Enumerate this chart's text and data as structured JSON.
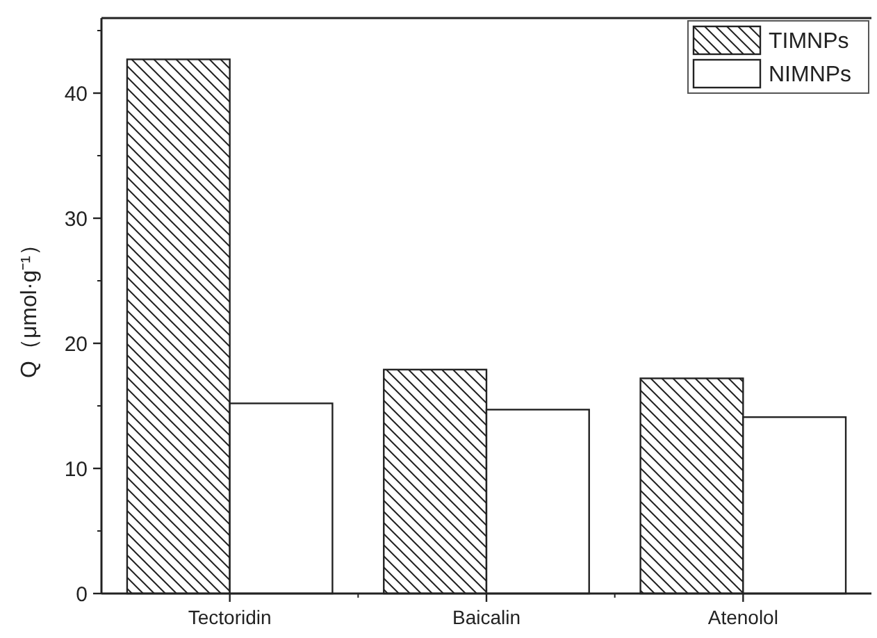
{
  "chart_data": {
    "type": "bar",
    "ylabel": "Q（μmol·g⁻¹）",
    "categories": [
      "Tectoridin",
      "Baicalin",
      "Atenolol"
    ],
    "series": [
      {
        "name": "TIMNPs",
        "color": "#222222",
        "values": [
          42.7,
          17.9,
          17.2
        ]
      },
      {
        "name": "NIMNPs",
        "color": "#ffffff",
        "values": [
          15.2,
          14.7,
          14.1
        ]
      }
    ],
    "ylim": [
      0,
      46
    ],
    "yticks": [
      0,
      10,
      20,
      30,
      40
    ],
    "grid": false,
    "legend": "top right"
  }
}
